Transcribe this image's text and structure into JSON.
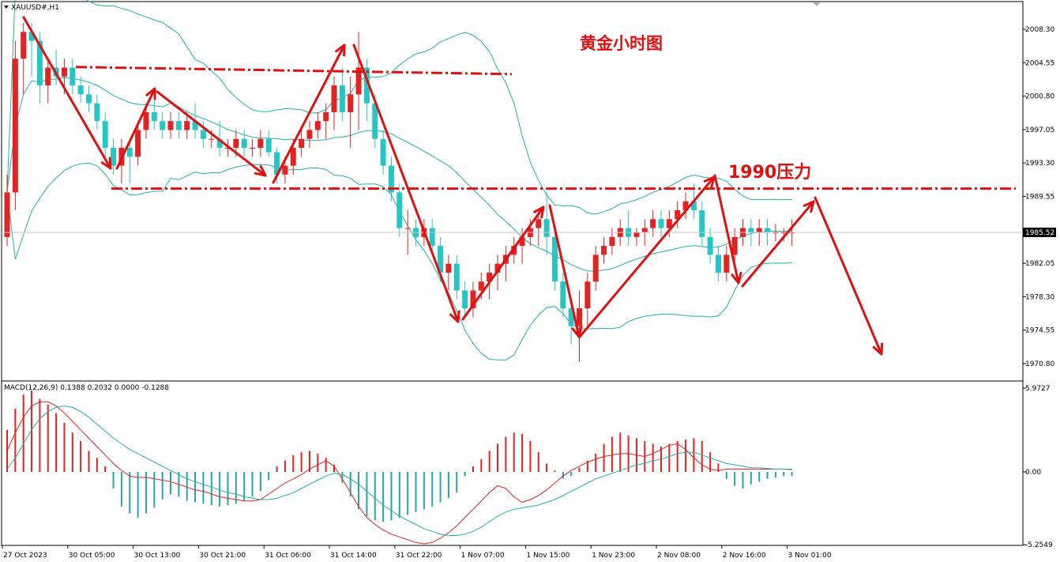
{
  "chart_data": [
    {
      "type": "candlestick",
      "symbol_label": "XAUUSD#,H1",
      "annotations": {
        "title": "黄金小时图",
        "resistance_label": "1990压力"
      },
      "price_axis": {
        "ticks": [
          "2008.30",
          "2004.55",
          "2000.80",
          "1997.05",
          "1993.30",
          "1989.55",
          "1982.05",
          "1978.30",
          "1974.55",
          "1970.80"
        ],
        "tick_values": [
          2008.3,
          2004.55,
          2000.8,
          1997.05,
          1993.3,
          1989.55,
          1982.05,
          1978.3,
          1974.55,
          1970.8
        ],
        "range": [
          1968.3,
          2011.4
        ],
        "current_price": "1985.52",
        "current_value": 1985.52
      },
      "time_axis": {
        "labels": [
          "27 Oct 2023",
          "30 Oct 05:00",
          "30 Oct 13:00",
          "30 Oct 21:00",
          "31 Oct 06:00",
          "31 Oct 14:00",
          "31 Oct 22:00",
          "1 Nov 07:00",
          "1 Nov 15:00",
          "1 Nov 23:00",
          "2 Nov 08:00",
          "2 Nov 16:00",
          "3 Nov 01:00"
        ],
        "label_bar_index": [
          0,
          8,
          16,
          24,
          32,
          40,
          48,
          56,
          64,
          72,
          80,
          88,
          96
        ]
      },
      "resistance_levels": [
        2003.8,
        1990.6
      ],
      "candles": [
        [
          1985,
          1992,
          1984,
          1990
        ],
        [
          1990,
          2007,
          1988,
          2005
        ],
        [
          2005,
          2009,
          2001,
          2008
        ],
        [
          2008,
          2009,
          2003,
          2007
        ],
        [
          2007,
          2008,
          2000,
          2002
        ],
        [
          2002,
          2005,
          2000,
          2004
        ],
        [
          2004,
          2006,
          2002,
          2003
        ],
        [
          2003,
          2005,
          2001,
          2004
        ],
        [
          2004,
          2005,
          2001,
          2002
        ],
        [
          2002,
          2003,
          2000,
          2001
        ],
        [
          2001,
          2002,
          1999,
          2000
        ],
        [
          2000,
          2001,
          1997,
          1998
        ],
        [
          1998,
          1999,
          1994,
          1995
        ],
        [
          1995,
          1996,
          1992,
          1993
        ],
        [
          1993,
          1996,
          1991,
          1995
        ],
        [
          1995,
          1996,
          1991,
          1994
        ],
        [
          1994,
          1998,
          1993,
          1997
        ],
        [
          1997,
          2000,
          1996,
          1999
        ],
        [
          1999,
          2001,
          1997,
          1998
        ],
        [
          1998,
          1999,
          1996,
          1997
        ],
        [
          1997,
          1999,
          1996,
          1998
        ],
        [
          1998,
          1999,
          1996,
          1997
        ],
        [
          1997,
          1999,
          1996,
          1998
        ],
        [
          1998,
          2000,
          1996,
          1997
        ],
        [
          1997,
          1998,
          1995,
          1996
        ],
        [
          1996,
          1997,
          1995,
          1996
        ],
        [
          1996,
          1998,
          1994,
          1995
        ],
        [
          1995,
          1996,
          1994,
          1995
        ],
        [
          1995,
          1997,
          1994,
          1996
        ],
        [
          1996,
          1997,
          1994,
          1995
        ],
        [
          1995,
          1996,
          1994,
          1995
        ],
        [
          1995,
          1997,
          1994,
          1996
        ],
        [
          1996,
          1997,
          1994,
          1994.5
        ],
        [
          1994.5,
          1995,
          1991,
          1992
        ],
        [
          1992,
          1994,
          1991,
          1993
        ],
        [
          1993,
          1996,
          1992,
          1995
        ],
        [
          1995,
          1997,
          1994,
          1996
        ],
        [
          1996,
          1998,
          1995,
          1997
        ],
        [
          1997,
          1999,
          1996,
          1998
        ],
        [
          1998,
          2000,
          1996,
          1999
        ],
        [
          1999,
          2003,
          1997,
          2002
        ],
        [
          2002,
          2004,
          1998,
          1999
        ],
        [
          1999,
          2003,
          1995,
          2001
        ],
        [
          2001,
          2008,
          1997,
          2004
        ],
        [
          2004,
          2005,
          1998,
          2000
        ],
        [
          2000,
          2001,
          1995,
          1996
        ],
        [
          1996,
          1997,
          1992,
          1993
        ],
        [
          1993,
          1994,
          1989,
          1990
        ],
        [
          1990,
          1991,
          1985,
          1986
        ],
        [
          1986,
          1988,
          1983,
          1986
        ],
        [
          1986,
          1987,
          1984,
          1985
        ],
        [
          1985,
          1987,
          1984,
          1986
        ],
        [
          1986,
          1987,
          1983,
          1984
        ],
        [
          1984,
          1985,
          1980,
          1981
        ],
        [
          1981,
          1983,
          1979,
          1982
        ],
        [
          1982,
          1983,
          1978,
          1979
        ],
        [
          1979,
          1980,
          1976,
          1977
        ],
        [
          1977,
          1980,
          1976,
          1979
        ],
        [
          1979,
          1981,
          1978,
          1980
        ],
        [
          1980,
          1982,
          1978,
          1981
        ],
        [
          1981,
          1983,
          1979,
          1982
        ],
        [
          1982,
          1984,
          1980,
          1983
        ],
        [
          1983,
          1985,
          1982,
          1984
        ],
        [
          1984,
          1986,
          1982,
          1985
        ],
        [
          1985,
          1987,
          1984,
          1986
        ],
        [
          1986,
          1988,
          1984,
          1987
        ],
        [
          1987,
          1990,
          1983,
          1985
        ],
        [
          1985,
          1986,
          1979,
          1980
        ],
        [
          1980,
          1981,
          1976,
          1977
        ],
        [
          1977,
          1978,
          1973,
          1975
        ],
        [
          1975,
          1979,
          1971,
          1977
        ],
        [
          1977,
          1981,
          1975,
          1980
        ],
        [
          1980,
          1984,
          1979,
          1983
        ],
        [
          1983,
          1985,
          1982,
          1984
        ],
        [
          1984,
          1986,
          1983,
          1985
        ],
        [
          1985,
          1987,
          1984,
          1986
        ],
        [
          1986,
          1988,
          1984,
          1985
        ],
        [
          1985,
          1986,
          1984,
          1985.5
        ],
        [
          1985.5,
          1987,
          1984,
          1986
        ],
        [
          1986,
          1988,
          1985,
          1987
        ],
        [
          1987,
          1988,
          1985,
          1986
        ],
        [
          1986,
          1988,
          1985,
          1987
        ],
        [
          1987,
          1989,
          1986,
          1988
        ],
        [
          1988,
          1990,
          1987,
          1989
        ],
        [
          1989,
          1991,
          1987,
          1988
        ],
        [
          1988,
          1989,
          1984,
          1985
        ],
        [
          1985,
          1986,
          1982,
          1983
        ],
        [
          1983,
          1984,
          1980,
          1981
        ],
        [
          1981,
          1984,
          1980,
          1983
        ],
        [
          1983,
          1986,
          1982,
          1985
        ],
        [
          1985,
          1987,
          1984,
          1986
        ],
        [
          1986,
          1987,
          1984,
          1985.5
        ],
        [
          1985.5,
          1987,
          1984,
          1986
        ],
        [
          1986,
          1987,
          1984,
          1985.5
        ],
        [
          1985.5,
          1986.5,
          1984.5,
          1985.5
        ],
        [
          1985.5,
          1986,
          1984.5,
          1985.5
        ],
        [
          1985.5,
          1987,
          1984,
          1985.52
        ]
      ]
    },
    {
      "type": "macd",
      "label": "MACD(12,26,9) 0.1388 0.2032 0.0000 -0.1288",
      "axis": {
        "top": "5.9727",
        "zero": "0.00",
        "bottom": "-5.2549",
        "range": [
          -5.2549,
          5.9727
        ]
      },
      "histogram": [
        3.0,
        4.5,
        5.5,
        5.8,
        5.2,
        4.8,
        4.2,
        3.5,
        2.8,
        2.2,
        1.5,
        1.0,
        0.4,
        -1.2,
        -2.5,
        -3.0,
        -3.3,
        -3.0,
        -2.6,
        -2.0,
        -1.6,
        -1.8,
        -2.1,
        -2.2,
        -2.3,
        -2.4,
        -2.5,
        -2.4,
        -2.3,
        -2.1,
        -1.8,
        -1.4,
        -0.6,
        0.4,
        0.8,
        1.2,
        1.4,
        1.5,
        1.3,
        1.0,
        0.5,
        -0.8,
        -1.8,
        -2.7,
        -3.2,
        -3.5,
        -3.6,
        -3.5,
        -3.3,
        -3.1,
        -2.9,
        -2.7,
        -2.5,
        -2.2,
        -1.9,
        -1.5,
        -0.3,
        0.4,
        0.9,
        1.5,
        2.0,
        2.5,
        2.8,
        2.7,
        2.2,
        1.4,
        0.6,
        0.1,
        -0.5,
        -0.3,
        0.3,
        0.8,
        1.3,
        2.0,
        2.5,
        2.8,
        2.6,
        2.4,
        2.2,
        2.0,
        1.8,
        2.0,
        2.2,
        2.3,
        2.4,
        2.2,
        1.4,
        0.6,
        -0.5,
        -1.0,
        -1.2,
        -0.9,
        -0.7,
        -0.5,
        -0.4,
        -0.3,
        -0.3
      ],
      "macd_line": [
        1.5,
        2.8,
        3.9,
        4.7,
        5.0,
        5.0,
        4.7,
        4.2,
        3.6,
        3.0,
        2.4,
        1.8,
        1.2,
        0.6,
        0.1,
        -0.3,
        -0.4,
        -0.4,
        -0.5,
        -0.6,
        -0.7,
        -0.9,
        -1.1,
        -1.3,
        -1.4,
        -1.6,
        -1.8,
        -1.9,
        -2.0,
        -2.1,
        -2.1,
        -2.0,
        -1.6,
        -1.2,
        -0.8,
        -0.5,
        -0.2,
        0.2,
        0.5,
        0.8,
        0.4,
        -0.5,
        -1.5,
        -2.5,
        -3.3,
        -3.8,
        -4.2,
        -4.5,
        -4.7,
        -4.9,
        -5.1,
        -5.2,
        -5.1,
        -4.8,
        -4.4,
        -3.9,
        -3.3,
        -2.7,
        -2.1,
        -1.5,
        -1.0,
        -1.2,
        -1.8,
        -2.2,
        -2.0,
        -1.7,
        -1.3,
        -0.8,
        -0.3,
        0.1,
        0.4,
        0.7,
        0.9,
        1.1,
        1.2,
        1.3,
        1.3,
        1.2,
        1.1,
        1.3,
        1.6,
        1.9,
        2.0,
        1.6,
        1.0,
        0.5,
        0.2,
        0.1,
        0.2,
        0.2,
        0.2,
        0.2,
        0.2,
        0.2,
        0.2,
        0.2,
        0.15
      ],
      "signal_line": [
        0.2,
        1.0,
        2.0,
        3.0,
        3.8,
        4.3,
        4.6,
        4.7,
        4.6,
        4.3,
        3.9,
        3.4,
        2.9,
        2.4,
        2.0,
        1.6,
        1.3,
        1.0,
        0.7,
        0.4,
        0.1,
        -0.2,
        -0.5,
        -0.7,
        -0.9,
        -1.1,
        -1.3,
        -1.5,
        -1.6,
        -1.8,
        -1.9,
        -2.0,
        -2.0,
        -1.9,
        -1.7,
        -1.5,
        -1.2,
        -0.9,
        -0.6,
        -0.3,
        -0.1,
        -0.2,
        -0.5,
        -0.9,
        -1.4,
        -1.9,
        -2.4,
        -2.8,
        -3.2,
        -3.5,
        -3.8,
        -4.1,
        -4.3,
        -4.5,
        -4.6,
        -4.6,
        -4.5,
        -4.3,
        -4.0,
        -3.6,
        -3.2,
        -2.9,
        -2.7,
        -2.6,
        -2.5,
        -2.4,
        -2.2,
        -2.0,
        -1.7,
        -1.4,
        -1.1,
        -0.8,
        -0.5,
        -0.3,
        -0.1,
        0.1,
        0.3,
        0.5,
        0.6,
        0.8,
        0.9,
        1.1,
        1.3,
        1.4,
        1.4,
        1.2,
        1.0,
        0.8,
        0.6,
        0.5,
        0.4,
        0.3,
        0.3,
        0.25,
        0.2,
        0.2,
        0.2
      ]
    }
  ]
}
